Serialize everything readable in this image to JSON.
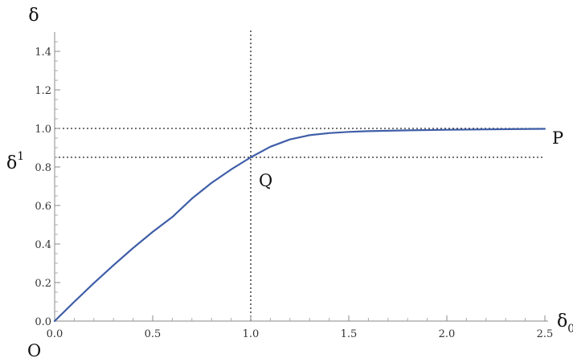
{
  "chart_data": {
    "type": "line",
    "xlabel": {
      "main": "δ",
      "sub": "0"
    },
    "ylabel": "δ",
    "ylim": [
      0,
      1.5
    ],
    "xlim": [
      0,
      2.5
    ],
    "x_ticks": [
      "0.0",
      "0.5",
      "1.0",
      "1.5",
      "2.0",
      "2.5"
    ],
    "y_ticks": [
      "0.0",
      "0.2",
      "0.4",
      "0.6",
      "0.8",
      "1.0",
      "1.2",
      "1.4"
    ],
    "grid": false,
    "series": [
      {
        "color": "#3f5ea8",
        "x": [
          0,
          0.1,
          0.2,
          0.3,
          0.4,
          0.5,
          0.6,
          0.7,
          0.8,
          0.9,
          1.0,
          1.1,
          1.2,
          1.3,
          1.4,
          1.5,
          1.6,
          1.8,
          2.0,
          2.2,
          2.5
        ],
        "y": [
          0,
          0.1,
          0.197,
          0.29,
          0.379,
          0.463,
          0.54,
          0.636,
          0.717,
          0.787,
          0.85,
          0.905,
          0.943,
          0.965,
          0.976,
          0.982,
          0.986,
          0.99,
          0.993,
          0.995,
          0.998
        ]
      }
    ],
    "reference_lines": [
      {
        "orientation": "vertical",
        "value": 1.0,
        "style": "dotted"
      },
      {
        "orientation": "horizontal",
        "value": 1.0,
        "style": "dotted"
      },
      {
        "orientation": "horizontal",
        "value": 0.85,
        "style": "dotted"
      }
    ],
    "annotations": [
      {
        "id": "O",
        "text": "O",
        "x": 0,
        "y": 0
      },
      {
        "id": "Q",
        "text": "Q",
        "x": 1.0,
        "y": 0.85
      },
      {
        "id": "P",
        "text": "P",
        "x": 2.5,
        "y": 1.0
      },
      {
        "id": "delta1",
        "text": "δ",
        "sup": "1",
        "x": 0,
        "y": 0.85
      }
    ]
  }
}
